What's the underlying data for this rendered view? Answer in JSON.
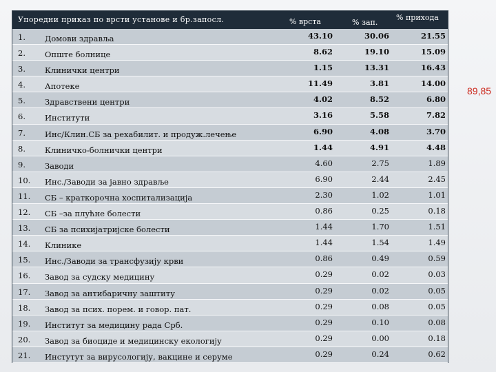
{
  "header": {
    "title": "Упоредни приказ по врсти установе и бр.запосл.",
    "col1": "% врста",
    "col2": "% зап.",
    "col3": "% прихода"
  },
  "rows": [
    {
      "n": "1.",
      "name": "Домови здравља",
      "v1": "43.10",
      "v2": "30.06",
      "v3": "21.55",
      "bold": true
    },
    {
      "n": "2.",
      "name": "Опште болнице",
      "v1": "8.62",
      "v2": "19.10",
      "v3": "15.09",
      "bold": true
    },
    {
      "n": "3.",
      "name": "Клинички центри",
      "v1": "1.15",
      "v2": "13.31",
      "v3": "16.43",
      "bold": true
    },
    {
      "n": "4.",
      "name": "Апотеке",
      "v1": "11.49",
      "v2": "3.81",
      "v3": "14.00",
      "bold": true
    },
    {
      "n": "5.",
      "name": "Здравствени центри",
      "v1": "4.02",
      "v2": "8.52",
      "v3": "6.80",
      "bold": true
    },
    {
      "n": "6.",
      "name": "Институти",
      "v1": "3.16",
      "v2": "5.58",
      "v3": "7.82",
      "bold": true
    },
    {
      "n": "7.",
      "name": "Инс/Клин.СБ за рехабилит. и продуж.лечење",
      "v1": "6.90",
      "v2": "4.08",
      "v3": "3.70",
      "bold": true
    },
    {
      "n": "8.",
      "name": "Клиничко-болнички центри",
      "v1": "1.44",
      "v2": "4.91",
      "v3": "4.48",
      "bold": true
    },
    {
      "n": "9.",
      "name": "Заводи",
      "v1": "4.60",
      "v2": "2.75",
      "v3": "1.89",
      "bold": false
    },
    {
      "n": "10.",
      "name": "Инс./Заводи за јавно здравље",
      "v1": "6.90",
      "v2": "2.44",
      "v3": "2.45",
      "bold": false
    },
    {
      "n": "11.",
      "name": "СБ – краткорочна хоспитализација",
      "v1": "2.30",
      "v2": "1.02",
      "v3": "1.01",
      "bold": false
    },
    {
      "n": "12.",
      "name": "СБ –за плућне болести",
      "v1": "0.86",
      "v2": "0.25",
      "v3": "0.18",
      "bold": false
    },
    {
      "n": "13.",
      "name": "СБ за психијатријске болести",
      "v1": "1.44",
      "v2": "1.70",
      "v3": "1.51",
      "bold": false
    },
    {
      "n": "14.",
      "name": "Клинике",
      "v1": "1.44",
      "v2": "1.54",
      "v3": "1.49",
      "bold": false
    },
    {
      "n": "15.",
      "name": "Инс./Заводи за трансфузију крви",
      "v1": "0.86",
      "v2": "0.49",
      "v3": "0.59",
      "bold": false
    },
    {
      "n": "16.",
      "name": "Завод за судску медицину",
      "v1": "0.29",
      "v2": "0.02",
      "v3": "0.03",
      "bold": false
    },
    {
      "n": "17.",
      "name": "Завод за антибаричну заштиту",
      "v1": "0.29",
      "v2": "0.02",
      "v3": "0.05",
      "bold": false
    },
    {
      "n": "18.",
      "name": "Завод за псих. порем. и говор. пат.",
      "v1": "0.29",
      "v2": "0.08",
      "v3": "0.05",
      "bold": false
    },
    {
      "n": "19.",
      "name": "Институт за медицину рада Срб.",
      "v1": "0.29",
      "v2": "0.10",
      "v3": "0.08",
      "bold": false
    },
    {
      "n": "20.",
      "name": "Завод за биоциде и медицинску екологију",
      "v1": "0.29",
      "v2": "0.00",
      "v3": "0.18",
      "bold": false
    },
    {
      "n": "21.",
      "name": "Инстутут за вирусологију, вакцине и серуме",
      "v1": "0.29",
      "v2": "0.24",
      "v3": "0.62",
      "bold": false
    }
  ],
  "side_note": "89,85",
  "colors": {
    "header_bg": "#1f2c39",
    "note_red": "#cc2a1f"
  }
}
